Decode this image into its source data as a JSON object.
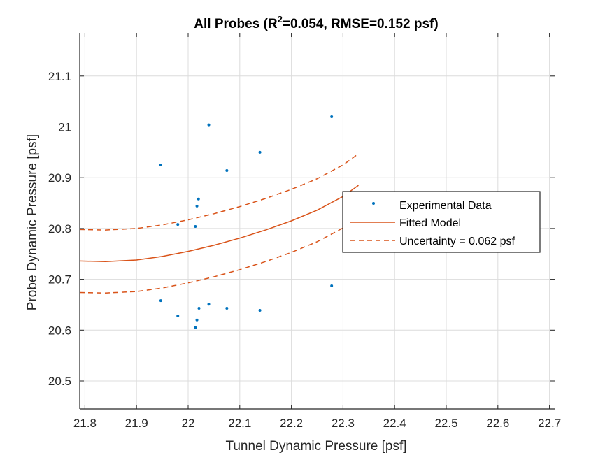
{
  "chart_data": {
    "type": "scatter",
    "title": {
      "prefix": "All Probes (R",
      "superscript": "2",
      "suffix": "=0.054, RMSE=0.152 psf)"
    },
    "xlabel": "Tunnel Dynamic Pressure [psf]",
    "ylabel": "Probe Dynamic Pressure [psf]",
    "xlim": [
      21.79,
      22.71
    ],
    "ylim": [
      20.445,
      21.185
    ],
    "xticks": [
      "21.8",
      "21.9",
      "22",
      "22.1",
      "22.2",
      "22.3",
      "22.4",
      "22.5",
      "22.6",
      "22.7"
    ],
    "yticks": [
      "20.5",
      "20.6",
      "20.7",
      "20.8",
      "20.9",
      "21",
      "21.1"
    ],
    "grid": true,
    "legend_position": "right",
    "colors": {
      "data": "#0072BD",
      "model": "#D95319",
      "axis": "#262626",
      "grid": "#dcdcdc"
    },
    "series": [
      {
        "name": "Experimental Data",
        "style": "points",
        "x": [
          21.947,
          21.947,
          21.98,
          21.98,
          22.014,
          22.014,
          22.017,
          22.017,
          22.02,
          22.021,
          22.04,
          22.04,
          22.075,
          22.075,
          22.139,
          22.139,
          22.278,
          22.278
        ],
        "y": [
          20.925,
          20.658,
          20.808,
          20.628,
          20.605,
          20.804,
          20.844,
          20.62,
          20.858,
          20.643,
          21.004,
          20.651,
          20.914,
          20.643,
          20.95,
          20.639,
          21.02,
          20.687
        ]
      },
      {
        "name": "Fitted Model",
        "style": "solid",
        "x": [
          21.79,
          21.84,
          21.9,
          21.95,
          22.0,
          22.05,
          22.1,
          22.15,
          22.2,
          22.25,
          22.3,
          22.33
        ],
        "y": [
          20.736,
          20.735,
          20.738,
          20.745,
          20.755,
          20.767,
          20.781,
          20.797,
          20.815,
          20.836,
          20.863,
          20.885
        ]
      },
      {
        "name": "Uncertainty = 0.062 psf",
        "style": "dashed",
        "x": [
          21.79,
          21.84,
          21.9,
          21.95,
          22.0,
          22.05,
          22.1,
          22.15,
          22.2,
          22.25,
          22.3,
          22.33
        ],
        "y": [
          20.798,
          20.797,
          20.8,
          20.807,
          20.817,
          20.829,
          20.843,
          20.859,
          20.877,
          20.898,
          20.925,
          20.947
        ]
      },
      {
        "name": "",
        "style": "dashed",
        "x": [
          21.79,
          21.84,
          21.9,
          21.95,
          22.0,
          22.05,
          22.1,
          22.15,
          22.2,
          22.25,
          22.3,
          22.33
        ],
        "y": [
          20.674,
          20.673,
          20.676,
          20.683,
          20.693,
          20.705,
          20.719,
          20.735,
          20.753,
          20.774,
          20.801,
          20.823
        ]
      }
    ],
    "legend": [
      "Experimental Data",
      "Fitted Model",
      "Uncertainty = 0.062 psf"
    ]
  }
}
